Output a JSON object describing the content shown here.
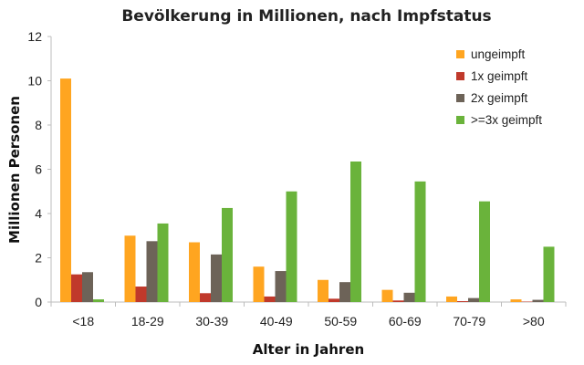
{
  "chart_data": {
    "type": "bar",
    "title": "Bevölkerung in Millionen, nach Impfstatus",
    "xlabel": "Alter in Jahren",
    "ylabel": "Millionen Personen",
    "ylim": [
      0,
      12
    ],
    "yticks": [
      0,
      2,
      4,
      6,
      8,
      10,
      12
    ],
    "grid": false,
    "legend_position": "top-right",
    "categories": [
      "<18",
      "18-29",
      "30-39",
      "40-49",
      "50-59",
      "60-69",
      "70-79",
      ">80"
    ],
    "series": [
      {
        "name": "ungeimpft",
        "color": "#ffa520",
        "values": [
          10.1,
          3.0,
          2.7,
          1.6,
          1.0,
          0.55,
          0.25,
          0.12
        ]
      },
      {
        "name": "1x geimpft",
        "color": "#c0392b",
        "values": [
          1.25,
          0.7,
          0.4,
          0.25,
          0.15,
          0.07,
          0.04,
          0.02
        ]
      },
      {
        "name": "2x geimpft",
        "color": "#6d6358",
        "values": [
          1.35,
          2.75,
          2.15,
          1.4,
          0.9,
          0.42,
          0.18,
          0.1
        ]
      },
      {
        "name": ">=3x geimpft",
        "color": "#6ab33b",
        "values": [
          0.12,
          3.55,
          4.25,
          5.0,
          6.35,
          5.45,
          4.55,
          2.5
        ]
      }
    ]
  }
}
